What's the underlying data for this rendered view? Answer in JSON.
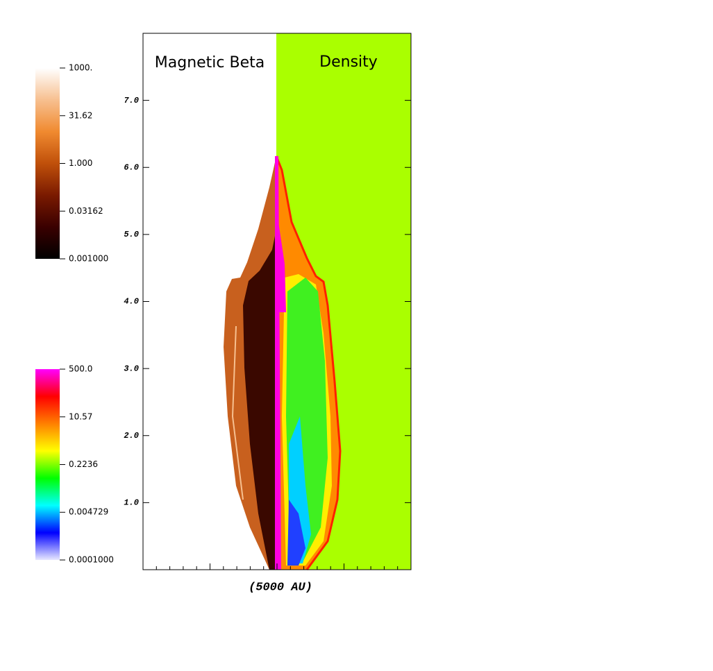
{
  "chart_data": {
    "type": "image",
    "panel_labels": [
      "Magnetic Beta",
      "Density"
    ],
    "panel_colors": [
      "#ffffff",
      "#aaff00"
    ],
    "xlabel": "(5000 AU)",
    "ylim": [
      0,
      8
    ],
    "yticks": [
      {
        "value": 1,
        "label": "1.0"
      },
      {
        "value": 2,
        "label": "2.0"
      },
      {
        "value": 3,
        "label": "3.0"
      },
      {
        "value": 4,
        "label": "4.0"
      },
      {
        "value": 5,
        "label": "5.0"
      },
      {
        "value": 6,
        "label": "6.0"
      },
      {
        "value": 7,
        "label": "7.0"
      }
    ],
    "colorbars": [
      {
        "log": true,
        "lim": [
          0.001,
          1000
        ],
        "colors": [
          "#000000",
          "#3a0000",
          "#7a1a00",
          "#c0500a",
          "#f08a30",
          "#f7c090",
          "#ffffff"
        ],
        "ticks": [
          {
            "value": 1000,
            "label": "1000."
          },
          {
            "value": 31.62,
            "label": "31.62"
          },
          {
            "value": 1,
            "label": "1.000"
          },
          {
            "value": 0.03162,
            "label": "0.03162"
          },
          {
            "value": 0.001,
            "label": "0.001000"
          }
        ]
      },
      {
        "log": true,
        "lim": [
          0.0001,
          500
        ],
        "colors": [
          "#e8e8ff",
          "#0000ff",
          "#00ffff",
          "#00ff00",
          "#ffff00",
          "#ff8000",
          "#ff0000",
          "#ff00ff"
        ],
        "ticks": [
          {
            "value": 500,
            "label": "500.0"
          },
          {
            "value": 10.57,
            "label": "10.57"
          },
          {
            "value": 0.2236,
            "label": "0.2236"
          },
          {
            "value": 0.004729,
            "label": "0.004729"
          },
          {
            "value": 0.0001,
            "label": "0.0001000"
          }
        ]
      }
    ]
  }
}
